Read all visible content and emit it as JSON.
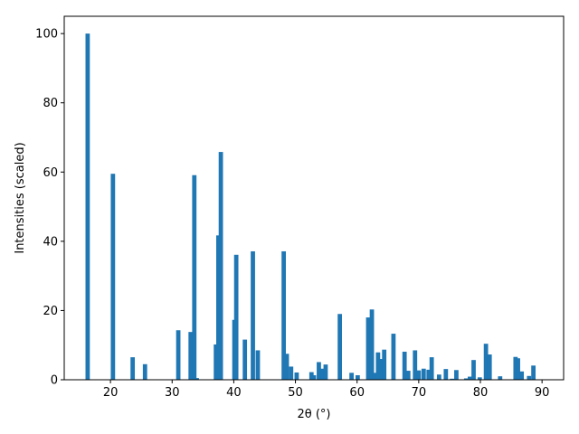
{
  "chart_data": {
    "type": "bar",
    "title": "",
    "xlabel": "2θ (°)",
    "ylabel": "Intensities (scaled)",
    "xlim": [
      12.5,
      93.5
    ],
    "ylim": [
      0,
      105
    ],
    "xticks": [
      20,
      30,
      40,
      50,
      60,
      70,
      80,
      90
    ],
    "yticks": [
      0,
      20,
      40,
      60,
      80,
      100
    ],
    "bar_width": 0.7,
    "grid": false,
    "color": "#1f77b4",
    "series": [
      {
        "x": [
          16.3,
          20.4,
          23.6,
          25.6,
          31.0,
          33.0,
          33.6,
          34.0,
          37.1,
          37.5,
          37.9,
          40.1,
          40.4,
          41.8,
          43.1,
          43.9,
          48.1,
          48.6,
          49.3,
          50.2,
          52.6,
          53.0,
          53.8,
          54.4,
          54.9,
          57.2,
          59.1,
          60.1,
          61.8,
          62.4,
          62.8,
          63.4,
          63.8,
          64.4,
          65.9,
          67.7,
          68.3,
          69.4,
          70.0,
          70.8,
          71.6,
          72.1,
          73.3,
          74.4,
          75.4,
          76.1,
          77.7,
          78.3,
          78.9,
          79.9,
          80.9,
          81.5,
          83.2,
          85.7,
          86.1,
          86.7,
          87.9,
          88.6
        ],
        "values": [
          100,
          59.5,
          6.5,
          4.5,
          14.3,
          13.8,
          59.1,
          0.5,
          10.2,
          41.7,
          65.8,
          17.3,
          36.1,
          11.6,
          37.1,
          8.5,
          37.1,
          7.5,
          3.8,
          2.1,
          2.2,
          1.3,
          5.1,
          3.2,
          4.4,
          19.0,
          2.0,
          1.3,
          18.0,
          20.3,
          2.0,
          7.9,
          6.0,
          8.7,
          13.3,
          8.1,
          2.6,
          8.5,
          2.7,
          3.2,
          2.9,
          6.5,
          1.5,
          3.1,
          0.3,
          2.8,
          0.4,
          0.9,
          5.7,
          0.7,
          10.4,
          7.3,
          1.0,
          6.6,
          6.2,
          2.4,
          1.1,
          4.1
        ]
      }
    ]
  }
}
